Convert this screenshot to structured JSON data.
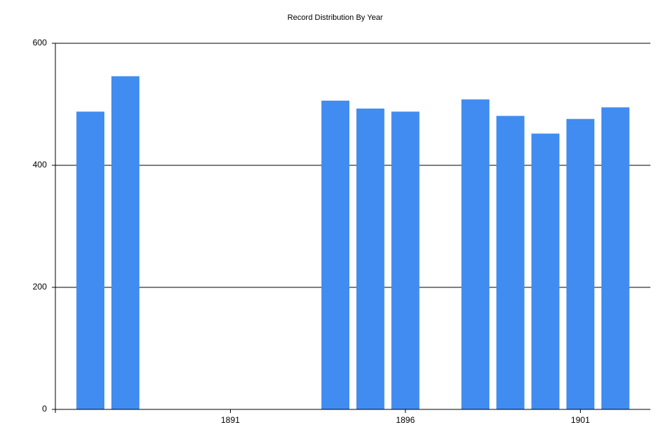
{
  "chart_data": {
    "type": "bar",
    "title": "Record Distribution By Year",
    "x": [
      1887,
      1888,
      1894,
      1895,
      1896,
      1898,
      1899,
      1900,
      1901,
      1902
    ],
    "values": [
      488,
      546,
      506,
      493,
      488,
      508,
      481,
      452,
      476,
      495
    ],
    "color": "#418cf0",
    "xlim": [
      1886,
      1903
    ],
    "xticks": [
      1891,
      1896,
      1901
    ],
    "ylim": [
      0,
      600
    ],
    "yticks": [
      0,
      200,
      400,
      600
    ],
    "grid": true
  }
}
